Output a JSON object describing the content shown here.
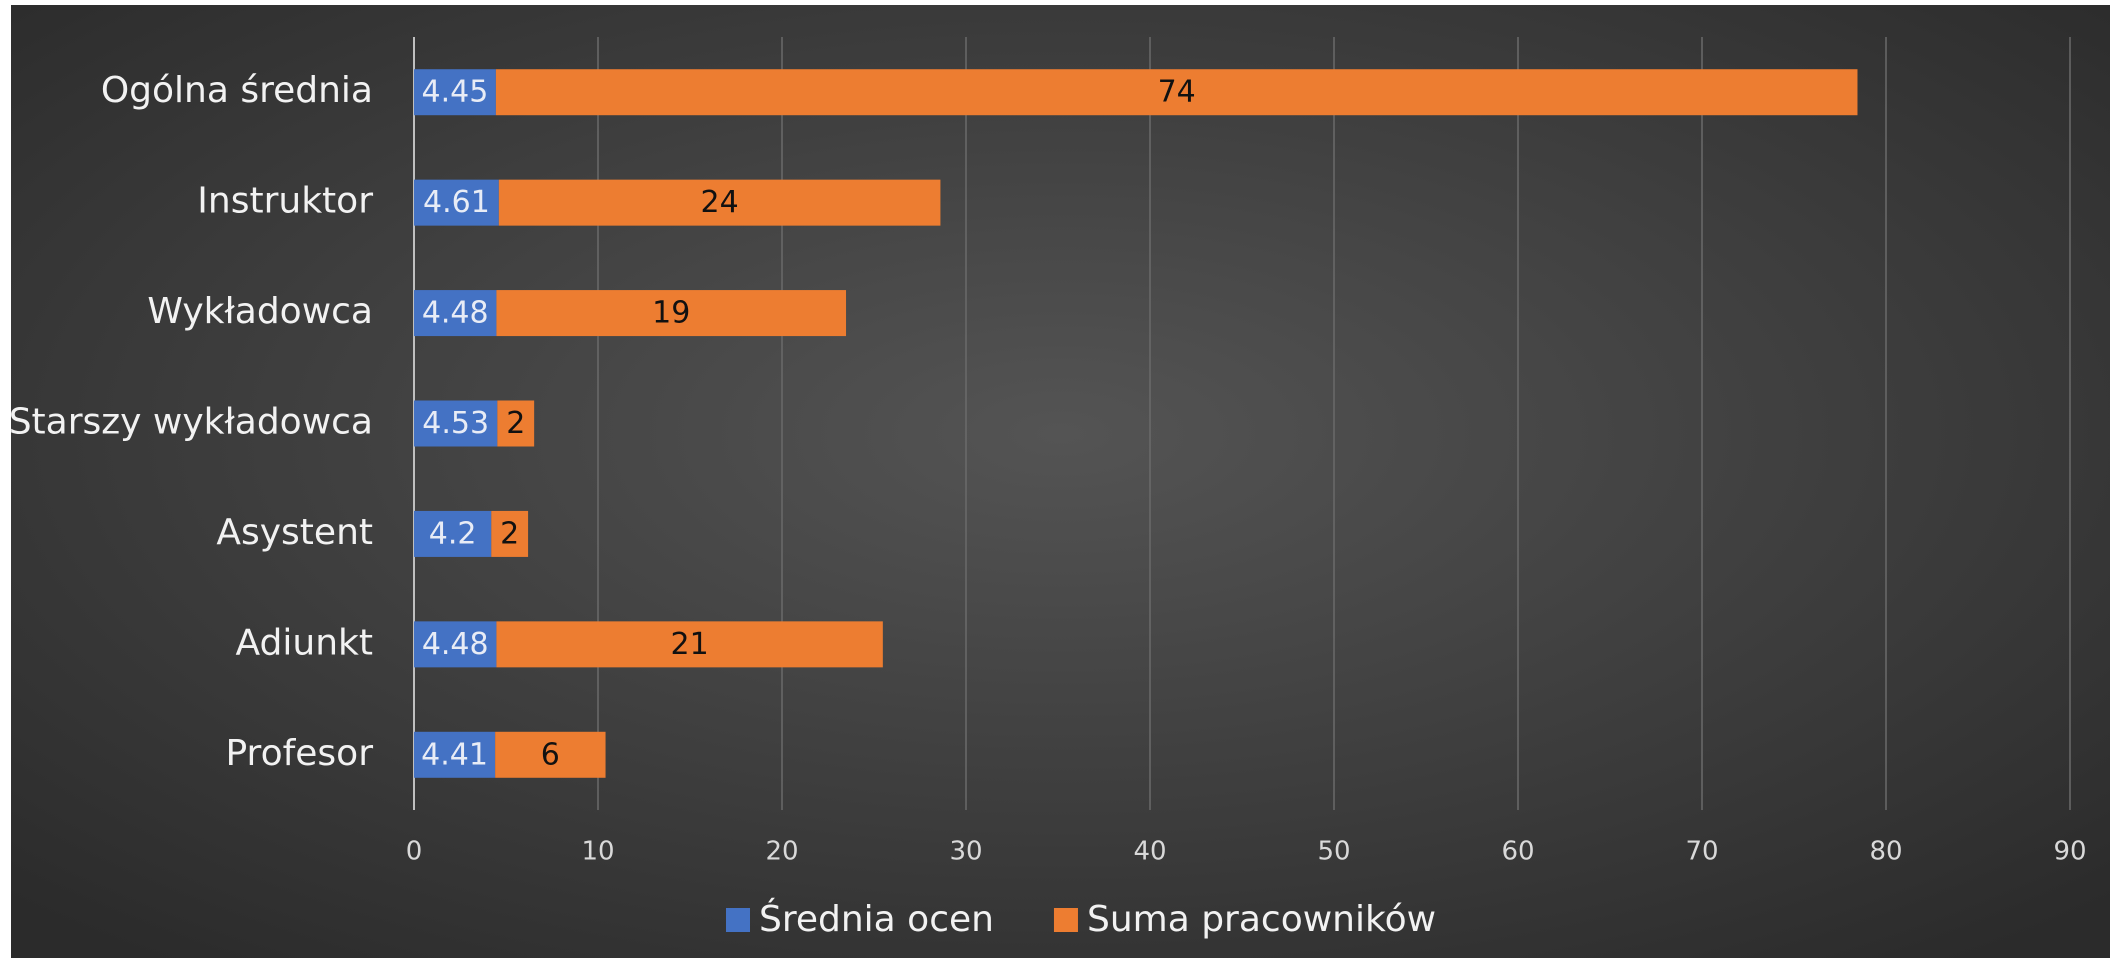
{
  "chart_data": {
    "type": "stacked_barh",
    "categories": [
      "Ogólna średnia",
      "Instruktor",
      "Wykładowca",
      "Starszy wykładowca",
      "Asystent",
      "Adiunkt",
      "Profesor"
    ],
    "series": [
      {
        "name": "Średnia ocen",
        "color": "#4472c4",
        "values": [
          4.45,
          4.61,
          4.48,
          4.53,
          4.2,
          4.48,
          4.41
        ]
      },
      {
        "name": "Suma pracowników",
        "color": "#ed7d31",
        "values": [
          74,
          24,
          19,
          2,
          2,
          21,
          6
        ]
      }
    ],
    "xlim": [
      0,
      90
    ],
    "xticks": [
      0,
      10,
      20,
      30,
      40,
      50,
      60,
      70,
      80,
      90
    ],
    "grid": true,
    "legend": "bottom"
  }
}
